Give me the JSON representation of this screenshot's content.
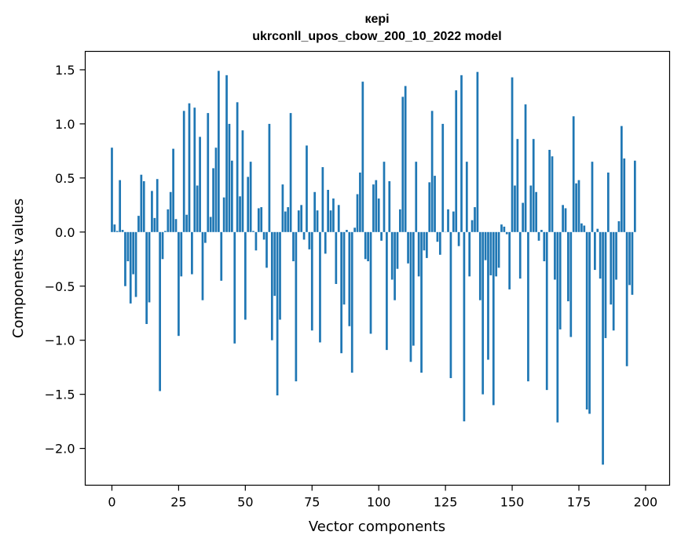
{
  "chart_data": {
    "type": "bar",
    "title": "кері",
    "subtitle": "ukrconll_upos_cbow_200_10_2022 model",
    "xlabel": "Vector components",
    "ylabel": "Components values",
    "xlim": [
      -10,
      209
    ],
    "ylim": [
      -2.34,
      1.67
    ],
    "xticks": [
      0,
      25,
      50,
      75,
      100,
      125,
      150,
      175,
      200
    ],
    "xtick_labels": [
      "0",
      "25",
      "50",
      "75",
      "100",
      "125",
      "150",
      "175",
      "200"
    ],
    "yticks": [
      1.5,
      1.0,
      0.5,
      0.0,
      -0.5,
      -1.0,
      -1.5,
      -2.0
    ],
    "ytick_labels": [
      "1.5",
      "1.0",
      "0.5",
      "0.0",
      "−0.5",
      "−1.0",
      "−1.5",
      "−2.0"
    ],
    "grid": false,
    "bar_color": "#1f77b4",
    "series": [
      {
        "values": [
          0.78,
          0.07,
          0.01,
          0.48,
          0.02,
          -0.5,
          -0.27,
          -0.66,
          -0.39,
          -0.6,
          0.15,
          0.53,
          0.47,
          -0.85,
          -0.65,
          0.38,
          0.13,
          0.49,
          -1.47,
          -0.25,
          0.01,
          0.21,
          0.37,
          0.77,
          0.12,
          -0.96,
          -0.41,
          1.12,
          0.16,
          1.19,
          -0.39,
          1.15,
          0.43,
          0.88,
          -0.63,
          -0.1,
          1.1,
          0.14,
          0.59,
          0.78,
          1.49,
          -0.45,
          0.32,
          1.45,
          1.0,
          0.66,
          -1.03,
          1.2,
          0.33,
          0.94,
          -0.81,
          0.51,
          0.65,
          0.01,
          -0.17,
          0.22,
          0.23,
          -0.07,
          -0.33,
          1.0,
          -1.0,
          -0.59,
          -1.51,
          -0.81,
          0.44,
          0.19,
          0.23,
          1.1,
          -0.27,
          -1.38,
          0.2,
          0.25,
          -0.07,
          0.8,
          -0.16,
          -0.91,
          0.37,
          0.2,
          -1.02,
          0.6,
          -0.2,
          0.39,
          0.2,
          0.31,
          -0.48,
          0.25,
          -1.12,
          -0.67,
          0.02,
          -0.87,
          -1.3,
          0.04,
          0.35,
          0.55,
          1.39,
          -0.25,
          -0.27,
          -0.94,
          0.44,
          0.48,
          0.31,
          -0.08,
          0.65,
          -1.09,
          0.47,
          -0.44,
          -0.63,
          -0.34,
          0.21,
          1.25,
          1.35,
          -0.29,
          -1.2,
          -1.05,
          0.65,
          -0.41,
          -1.3,
          -0.17,
          -0.24,
          0.46,
          1.12,
          0.52,
          -0.09,
          -0.21,
          1.0,
          0.0,
          0.21,
          -1.35,
          0.19,
          1.31,
          -0.13,
          1.45,
          -1.75,
          0.65,
          -0.41,
          0.11,
          0.23,
          1.48,
          -0.63,
          -1.5,
          -0.26,
          -1.18,
          -0.4,
          -1.6,
          -0.41,
          -0.33,
          0.07,
          0.05,
          -0.02,
          -0.53,
          1.43,
          0.43,
          0.86,
          -0.43,
          0.27,
          1.18,
          -1.38,
          0.43,
          0.86,
          0.37,
          -0.08,
          0.02,
          -0.27,
          -1.46,
          0.76,
          0.7,
          -0.44,
          -1.76,
          -0.9,
          0.25,
          0.22,
          -0.64,
          -0.97,
          1.07,
          0.45,
          0.48,
          0.08,
          0.06,
          -1.64,
          -1.68,
          0.65,
          -0.35,
          0.03,
          -0.43,
          -2.15,
          -0.98,
          0.55,
          -0.67,
          -0.91,
          -0.44,
          0.1,
          0.98,
          0.68,
          -1.24,
          -0.49,
          -0.58,
          0.66
        ]
      }
    ]
  }
}
